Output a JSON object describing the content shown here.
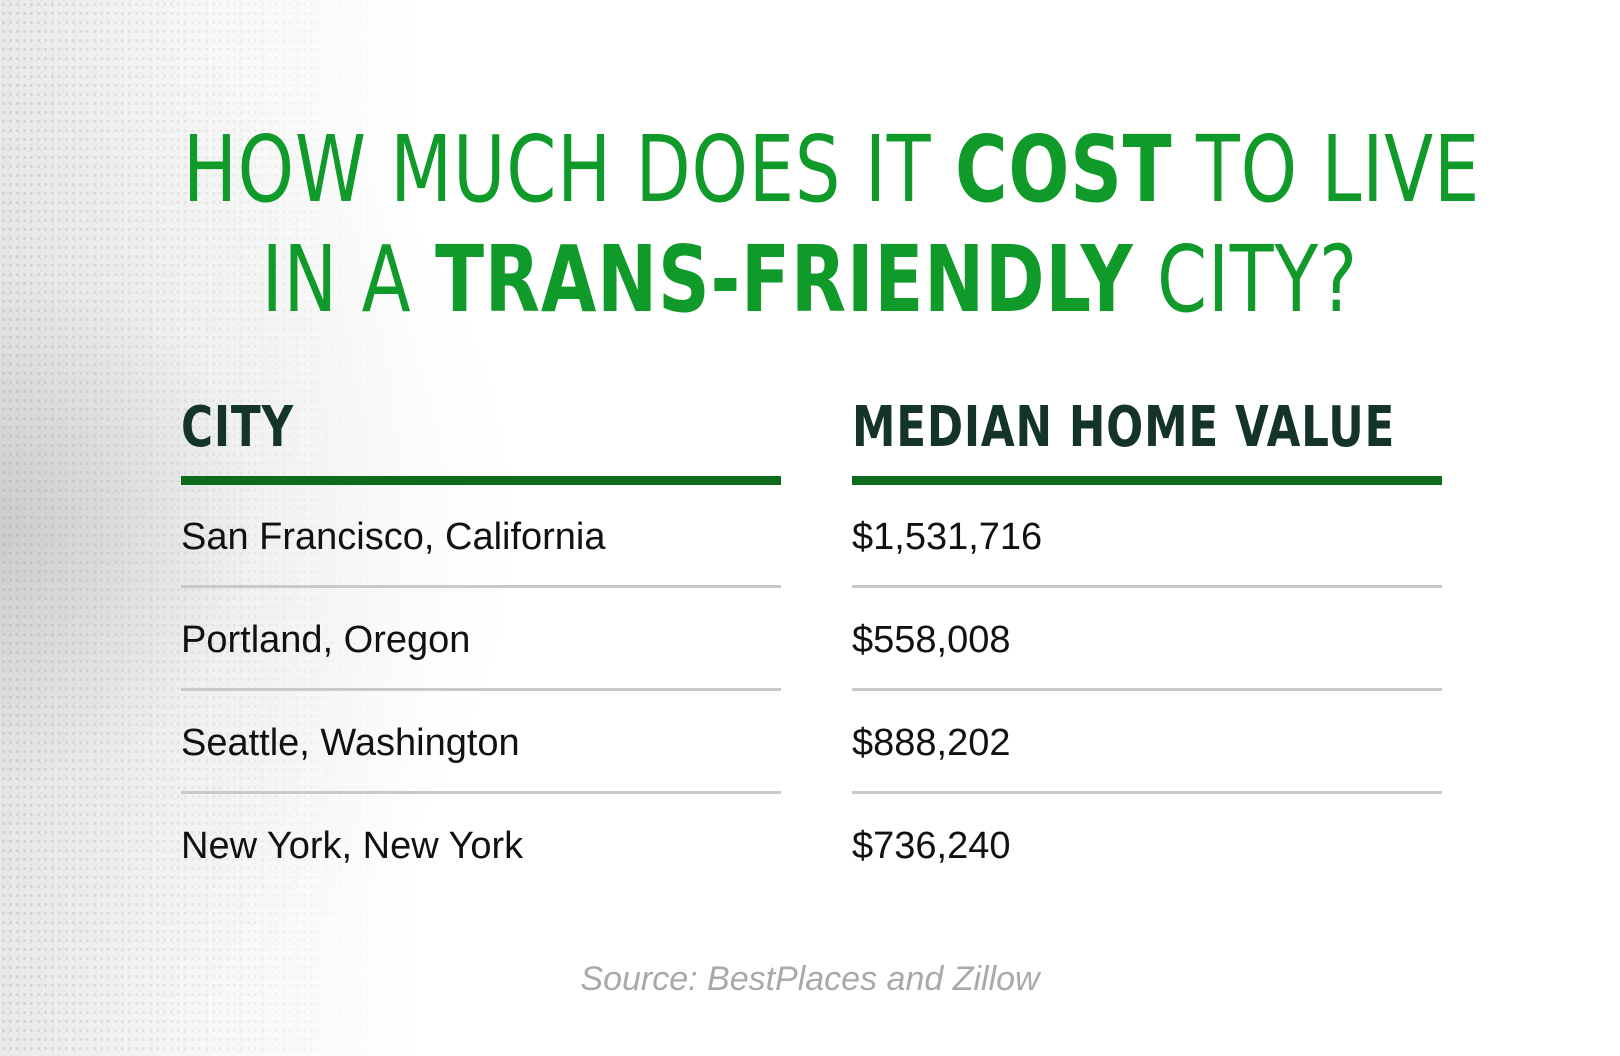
{
  "title": {
    "line1_prefix": "HOW MUCH DOES IT ",
    "line1_bold": "COST",
    "line1_suffix": " TO LIVE",
    "line2_prefix": "IN A ",
    "line2_bold": "TRANS-FRIENDLY",
    "line2_suffix": " CITY?"
  },
  "colors": {
    "title_green": "#0f9a2a",
    "header_text": "#14332a",
    "header_rule": "#0e6a1c",
    "row_rule": "#c9cac5",
    "source_text": "#a9a9a9"
  },
  "chart_data": {
    "type": "table",
    "columns": [
      "CITY",
      "MEDIAN HOME VALUE"
    ],
    "rows": [
      [
        "San Francisco, California",
        "$1,531,716"
      ],
      [
        "Portland, Oregon",
        "$558,008"
      ],
      [
        "Seattle, Washington",
        "$888,202"
      ],
      [
        "New York, New York",
        "$736,240"
      ]
    ],
    "values": [
      1531716,
      558008,
      888202,
      736240
    ]
  },
  "source": "Source: BestPlaces and Zillow"
}
